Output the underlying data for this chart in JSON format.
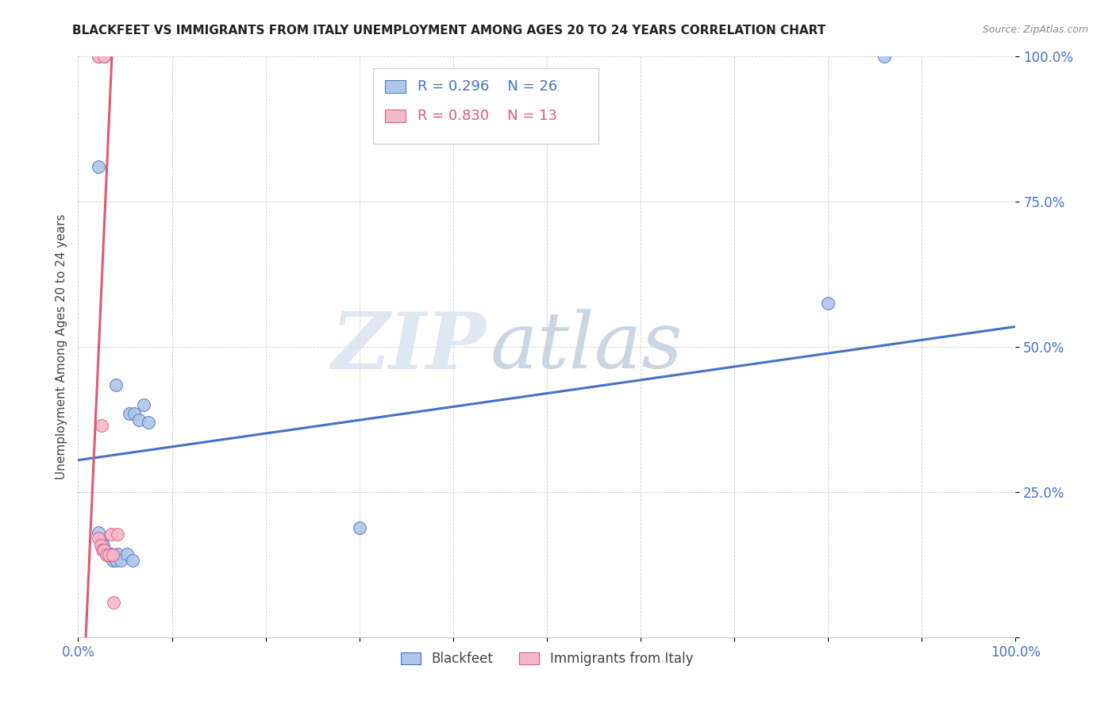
{
  "title": "BLACKFEET VS IMMIGRANTS FROM ITALY UNEMPLOYMENT AMONG AGES 20 TO 24 YEARS CORRELATION CHART",
  "source": "Source: ZipAtlas.com",
  "ylabel": "Unemployment Among Ages 20 to 24 years",
  "legend_blue_r": "R = 0.296",
  "legend_blue_n": "N = 26",
  "legend_pink_r": "R = 0.830",
  "legend_pink_n": "N = 13",
  "legend_label_blue": "Blackfeet",
  "legend_label_pink": "Immigrants from Italy",
  "blue_color": "#aec6e8",
  "pink_color": "#f4b8cb",
  "trend_blue_color": "#4472c4",
  "trend_pink_color": "#e05878",
  "watermark_zip": "ZIP",
  "watermark_atlas": "atlas",
  "blue_points": [
    [
      0.022,
      0.81
    ],
    [
      0.022,
      1.0
    ],
    [
      0.028,
      1.0
    ],
    [
      0.04,
      0.435
    ],
    [
      0.055,
      0.385
    ],
    [
      0.06,
      0.385
    ],
    [
      0.065,
      0.375
    ],
    [
      0.07,
      0.4
    ],
    [
      0.075,
      0.37
    ],
    [
      0.022,
      0.18
    ],
    [
      0.025,
      0.165
    ],
    [
      0.027,
      0.158
    ],
    [
      0.028,
      0.15
    ],
    [
      0.03,
      0.143
    ],
    [
      0.032,
      0.143
    ],
    [
      0.033,
      0.14
    ],
    [
      0.035,
      0.143
    ],
    [
      0.037,
      0.132
    ],
    [
      0.04,
      0.132
    ],
    [
      0.042,
      0.143
    ],
    [
      0.045,
      0.132
    ],
    [
      0.052,
      0.143
    ],
    [
      0.058,
      0.132
    ],
    [
      0.3,
      0.188
    ],
    [
      0.8,
      0.575
    ],
    [
      0.86,
      1.0
    ]
  ],
  "pink_points": [
    [
      0.022,
      1.0
    ],
    [
      0.028,
      1.0
    ],
    [
      0.025,
      0.365
    ],
    [
      0.035,
      0.178
    ],
    [
      0.022,
      0.17
    ],
    [
      0.024,
      0.158
    ],
    [
      0.026,
      0.15
    ],
    [
      0.028,
      0.15
    ],
    [
      0.03,
      0.142
    ],
    [
      0.033,
      0.142
    ],
    [
      0.037,
      0.142
    ],
    [
      0.038,
      0.06
    ],
    [
      0.042,
      0.178
    ]
  ],
  "blue_trend": [
    0.0,
    0.305,
    1.0,
    0.535
  ],
  "pink_slope": 36.0,
  "pink_intercept": -0.295,
  "xlim": [
    0.0,
    1.0
  ],
  "ylim": [
    0.0,
    1.0
  ],
  "xtick_positions": [
    0.0,
    0.1,
    0.2,
    0.3,
    0.4,
    0.5,
    0.6,
    0.7,
    0.8,
    0.9,
    1.0
  ],
  "ytick_positions": [
    0.0,
    0.25,
    0.5,
    0.75,
    1.0
  ],
  "xtick_labels": [
    "0.0%",
    "",
    "",
    "",
    "",
    "",
    "",
    "",
    "",
    "",
    "100.0%"
  ],
  "ytick_labels": [
    "",
    "25.0%",
    "50.0%",
    "75.0%",
    "100.0%"
  ],
  "marker_size": 130,
  "figsize": [
    14.06,
    8.92
  ],
  "dpi": 100
}
